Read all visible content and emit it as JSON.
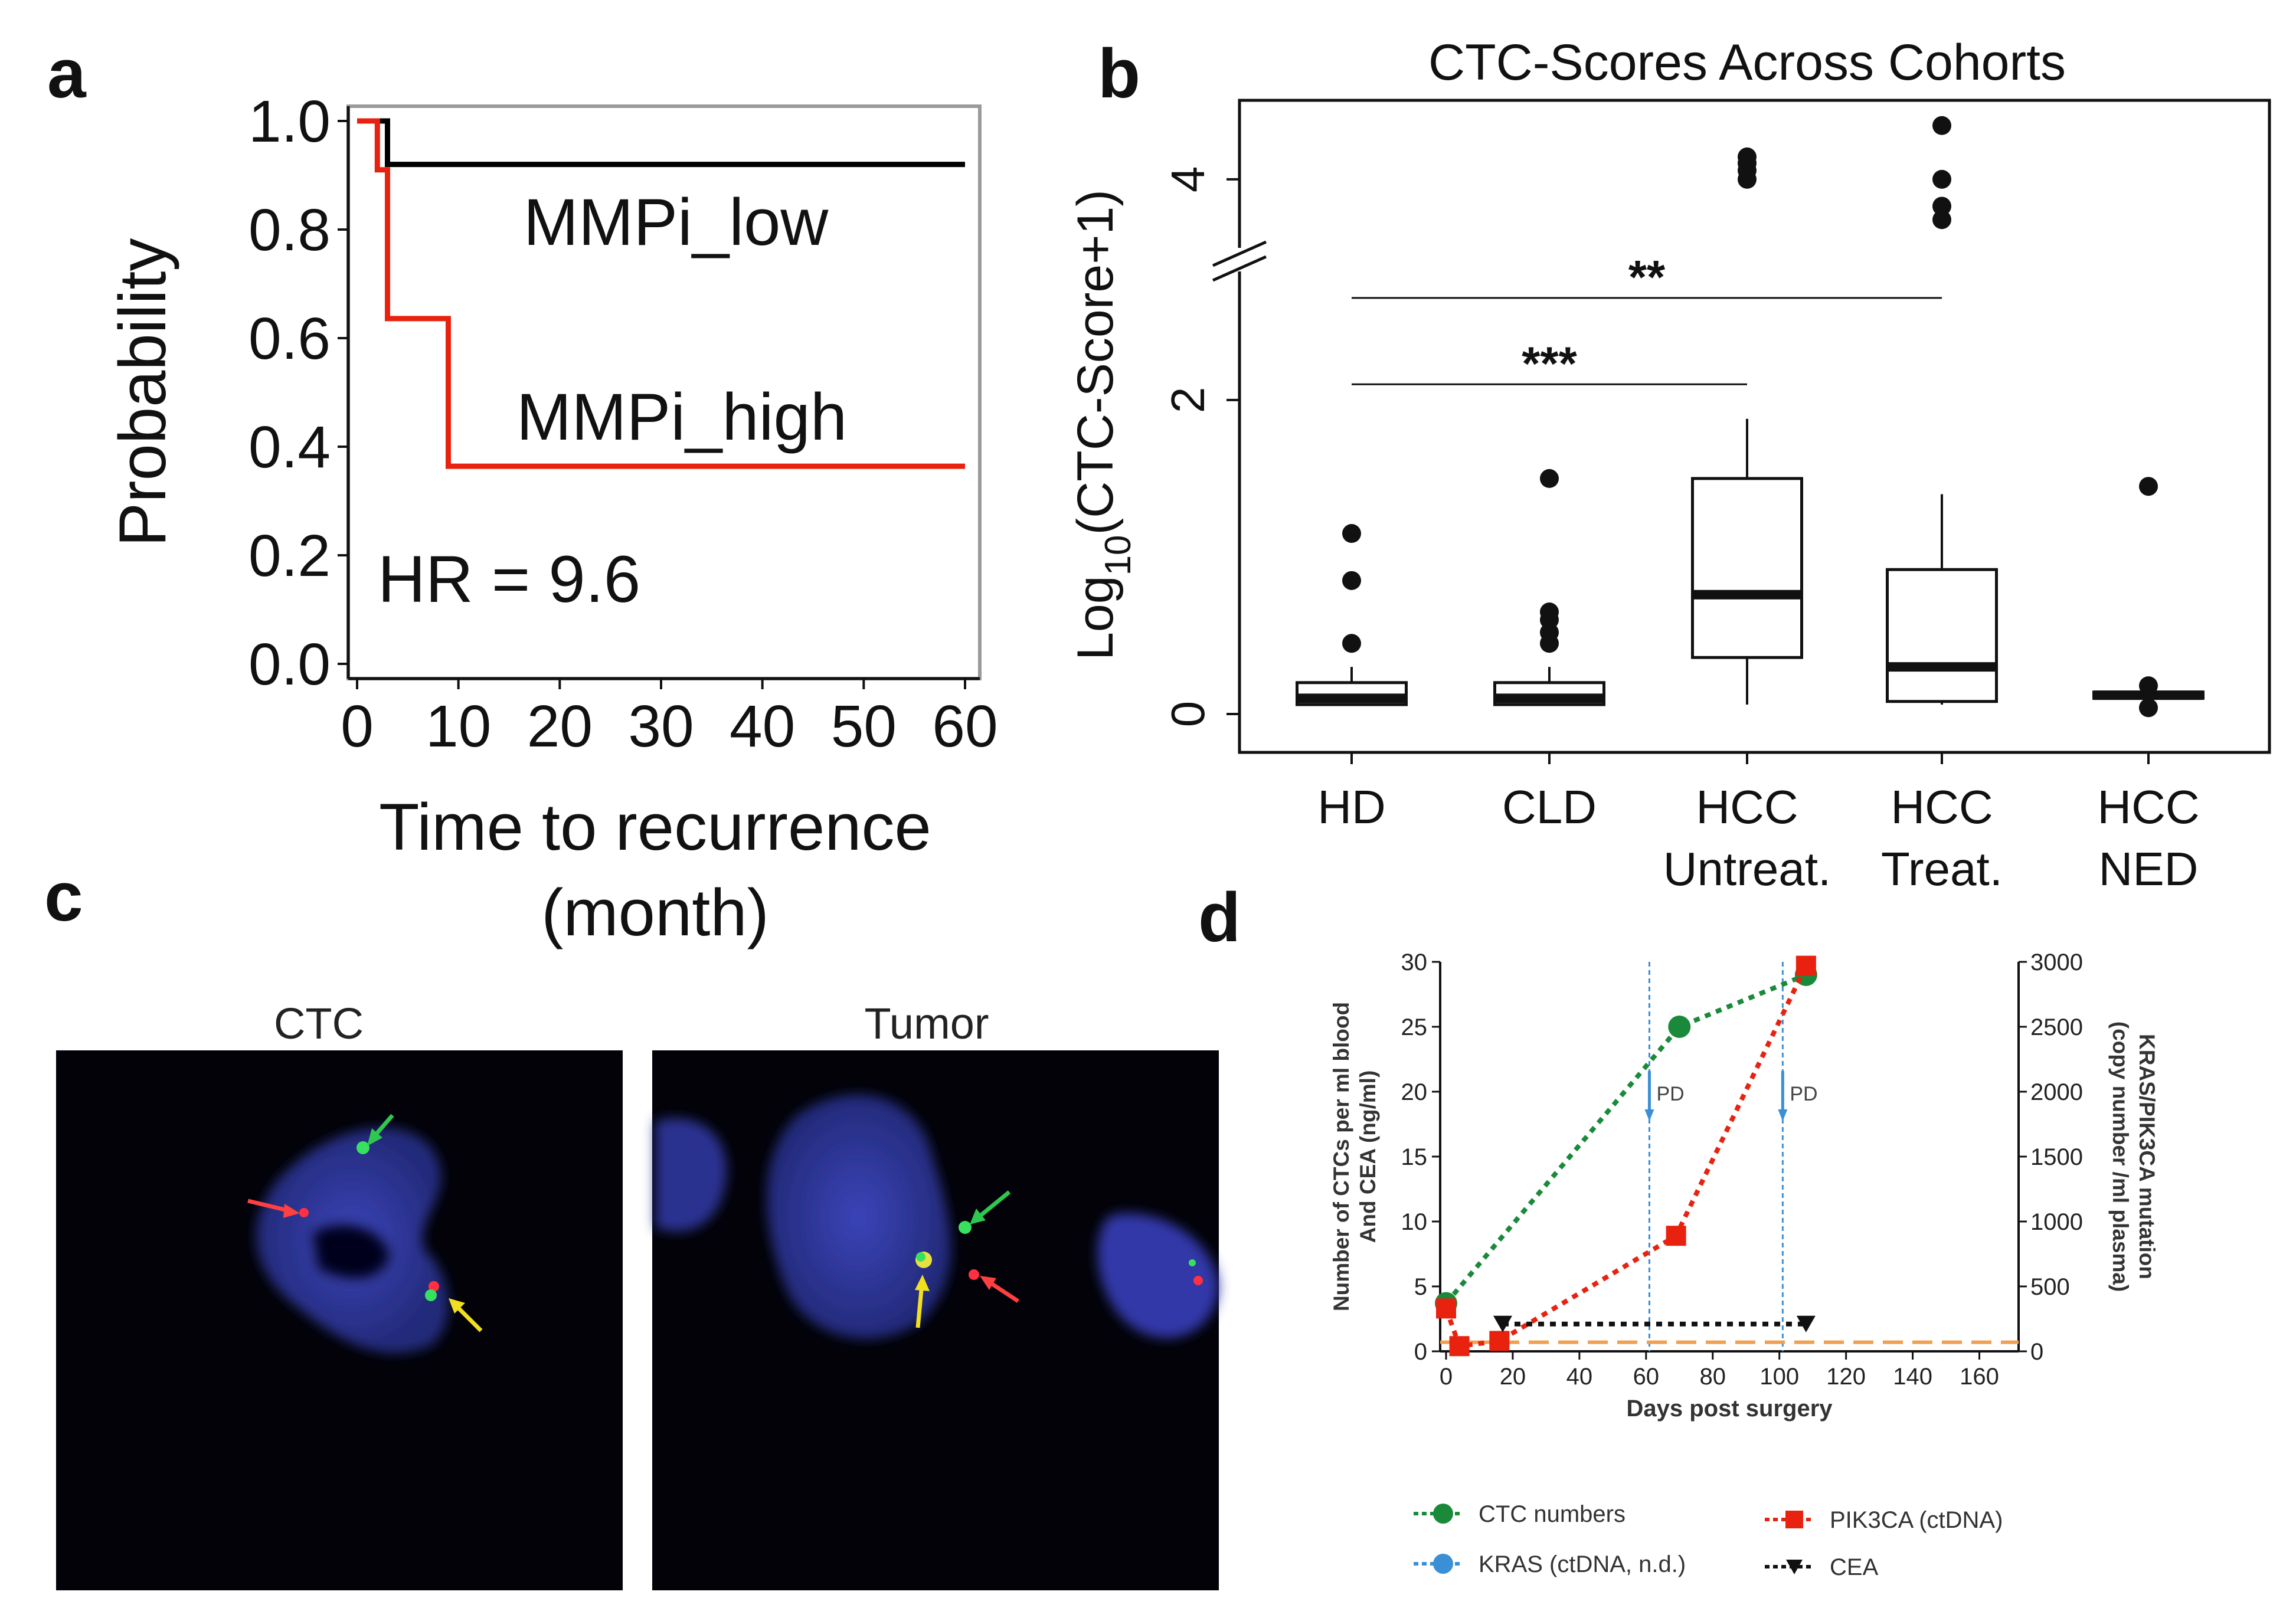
{
  "panels": {
    "a": "a",
    "b": "b",
    "c": "c",
    "d": "d"
  },
  "chart_data": [
    {
      "type": "line",
      "subtype": "kaplan-meier",
      "title": "",
      "xlabel": "Time to recurrence",
      "xlabel2": "(month)",
      "ylabel": "Probability",
      "xlim": [
        0,
        60
      ],
      "ylim": [
        0,
        1
      ],
      "xticks": [
        "0",
        "10",
        "20",
        "30",
        "40",
        "50",
        "60"
      ],
      "xtick_values": [
        0,
        10,
        20,
        30,
        40,
        50,
        60
      ],
      "yticks": [
        "0.0",
        "0.2",
        "0.4",
        "0.6",
        "0.8",
        "1.0"
      ],
      "ytick_values": [
        0,
        0.2,
        0.4,
        0.6,
        0.8,
        1.0
      ],
      "series": [
        {
          "name": "MMPi_low",
          "color": "#000000",
          "x": [
            0,
            3,
            3,
            60
          ],
          "y": [
            1.0,
            1.0,
            0.92,
            0.92
          ]
        },
        {
          "name": "MMPi_high",
          "color": "#e8220f",
          "x": [
            0,
            2,
            2,
            3,
            3,
            9,
            9,
            60
          ],
          "y": [
            1.0,
            1.0,
            0.91,
            0.91,
            0.636,
            0.636,
            0.364,
            0.364
          ]
        }
      ],
      "annotation": "HR = 9.6"
    },
    {
      "type": "box",
      "title": "CTC-Scores Across Cohorts",
      "ylabel_prefix": "Log",
      "ylabel_sub": "10",
      "ylabel_suffix": "(CTC-Score+1)",
      "yticks": [
        "0",
        "2",
        "4"
      ],
      "ytick_values": [
        0,
        2,
        4
      ],
      "broken_axis": true,
      "categories": [
        {
          "line1": "HD",
          "line2": ""
        },
        {
          "line1": "CLD",
          "line2": ""
        },
        {
          "line1": "HCC",
          "line2": "Untreat."
        },
        {
          "line1": "HCC",
          "line2": "Treat."
        },
        {
          "line1": "HCC",
          "line2": "NED"
        }
      ],
      "boxes": [
        {
          "min": 0.06,
          "q1": 0.06,
          "median": 0.1,
          "q3": 0.2,
          "max": 0.3,
          "outliers": [
            0.45,
            0.85,
            1.15
          ]
        },
        {
          "min": 0.06,
          "q1": 0.06,
          "median": 0.1,
          "q3": 0.2,
          "max": 0.3,
          "outliers": [
            0.45,
            0.52,
            0.6,
            0.65,
            1.5
          ]
        },
        {
          "min": 0.06,
          "q1": 0.36,
          "median": 0.76,
          "q3": 1.5,
          "max": 1.88,
          "outliers": [
            4.0,
            4.1,
            4.18,
            4.25
          ]
        },
        {
          "min": 0.06,
          "q1": 0.08,
          "median": 0.3,
          "q3": 0.92,
          "max": 1.4,
          "outliers": [
            3.55,
            3.7,
            4.0,
            4.6
          ]
        },
        {
          "min": 0.08,
          "q1": 0.1,
          "median": 0.12,
          "q3": 0.14,
          "max": 0.16,
          "outliers": [
            0.04,
            0.18,
            1.45
          ]
        }
      ],
      "significance": [
        {
          "from": 0,
          "to": 2,
          "label": "***",
          "y": 2.1
        },
        {
          "from": 0,
          "to": 3,
          "label": "**",
          "y": 2.65
        }
      ]
    },
    {
      "type": "image",
      "labels": [
        "CTC",
        "Tumor"
      ]
    },
    {
      "type": "line",
      "title": "",
      "xlabel": "Days post surgery",
      "ylabel_left_1": "Number of CTCs per ml blood",
      "ylabel_left_2": "And CEA (ng/ml)",
      "ylabel_right_1": "KRAS/PIK3CA mutation",
      "ylabel_right_2": "(copy number /ml plasma)",
      "xlim": [
        0,
        170
      ],
      "ylim_left": [
        0,
        30
      ],
      "ylim_right": [
        0,
        3000
      ],
      "xticks": [
        "0",
        "20",
        "40",
        "60",
        "80",
        "100",
        "120",
        "140",
        "160"
      ],
      "xtick_values": [
        0,
        20,
        40,
        60,
        80,
        100,
        120,
        140,
        160
      ],
      "yticks_left": [
        "0",
        "5",
        "10",
        "15",
        "20",
        "25",
        "30"
      ],
      "ytick_values_left": [
        0,
        5,
        10,
        15,
        20,
        25,
        30
      ],
      "yticks_right": [
        "0",
        "500",
        "1000",
        "1500",
        "2000",
        "2500",
        "3000"
      ],
      "ytick_values_right": [
        0,
        500,
        1000,
        1500,
        2000,
        2500,
        3000
      ],
      "pd_days": [
        61,
        101
      ],
      "pd_label": "PD",
      "series": [
        {
          "name": "CTC numbers",
          "color": "#1a8a3a",
          "marker": "circle",
          "axis": "left",
          "x": [
            0,
            70,
            108
          ],
          "y": [
            3.7,
            25,
            29
          ]
        },
        {
          "name": "KRAS (ctDNA, n.d.)",
          "color": "#3a8fd6",
          "marker": "circle",
          "axis": "right",
          "x": [],
          "y": []
        },
        {
          "name": "PIK3CA (ctDNA)",
          "color": "#e8220f",
          "marker": "square",
          "axis": "right",
          "x": [
            0,
            4,
            16,
            69,
            108
          ],
          "y": [
            330,
            40,
            80,
            890,
            2970
          ]
        },
        {
          "name": "CEA",
          "color": "#111111",
          "marker": "triangle-down",
          "axis": "left",
          "x": [
            17,
            108
          ],
          "y": [
            2.1,
            2.1
          ]
        }
      ],
      "threshold_right": 70,
      "threshold_color": "#f0a050"
    }
  ]
}
